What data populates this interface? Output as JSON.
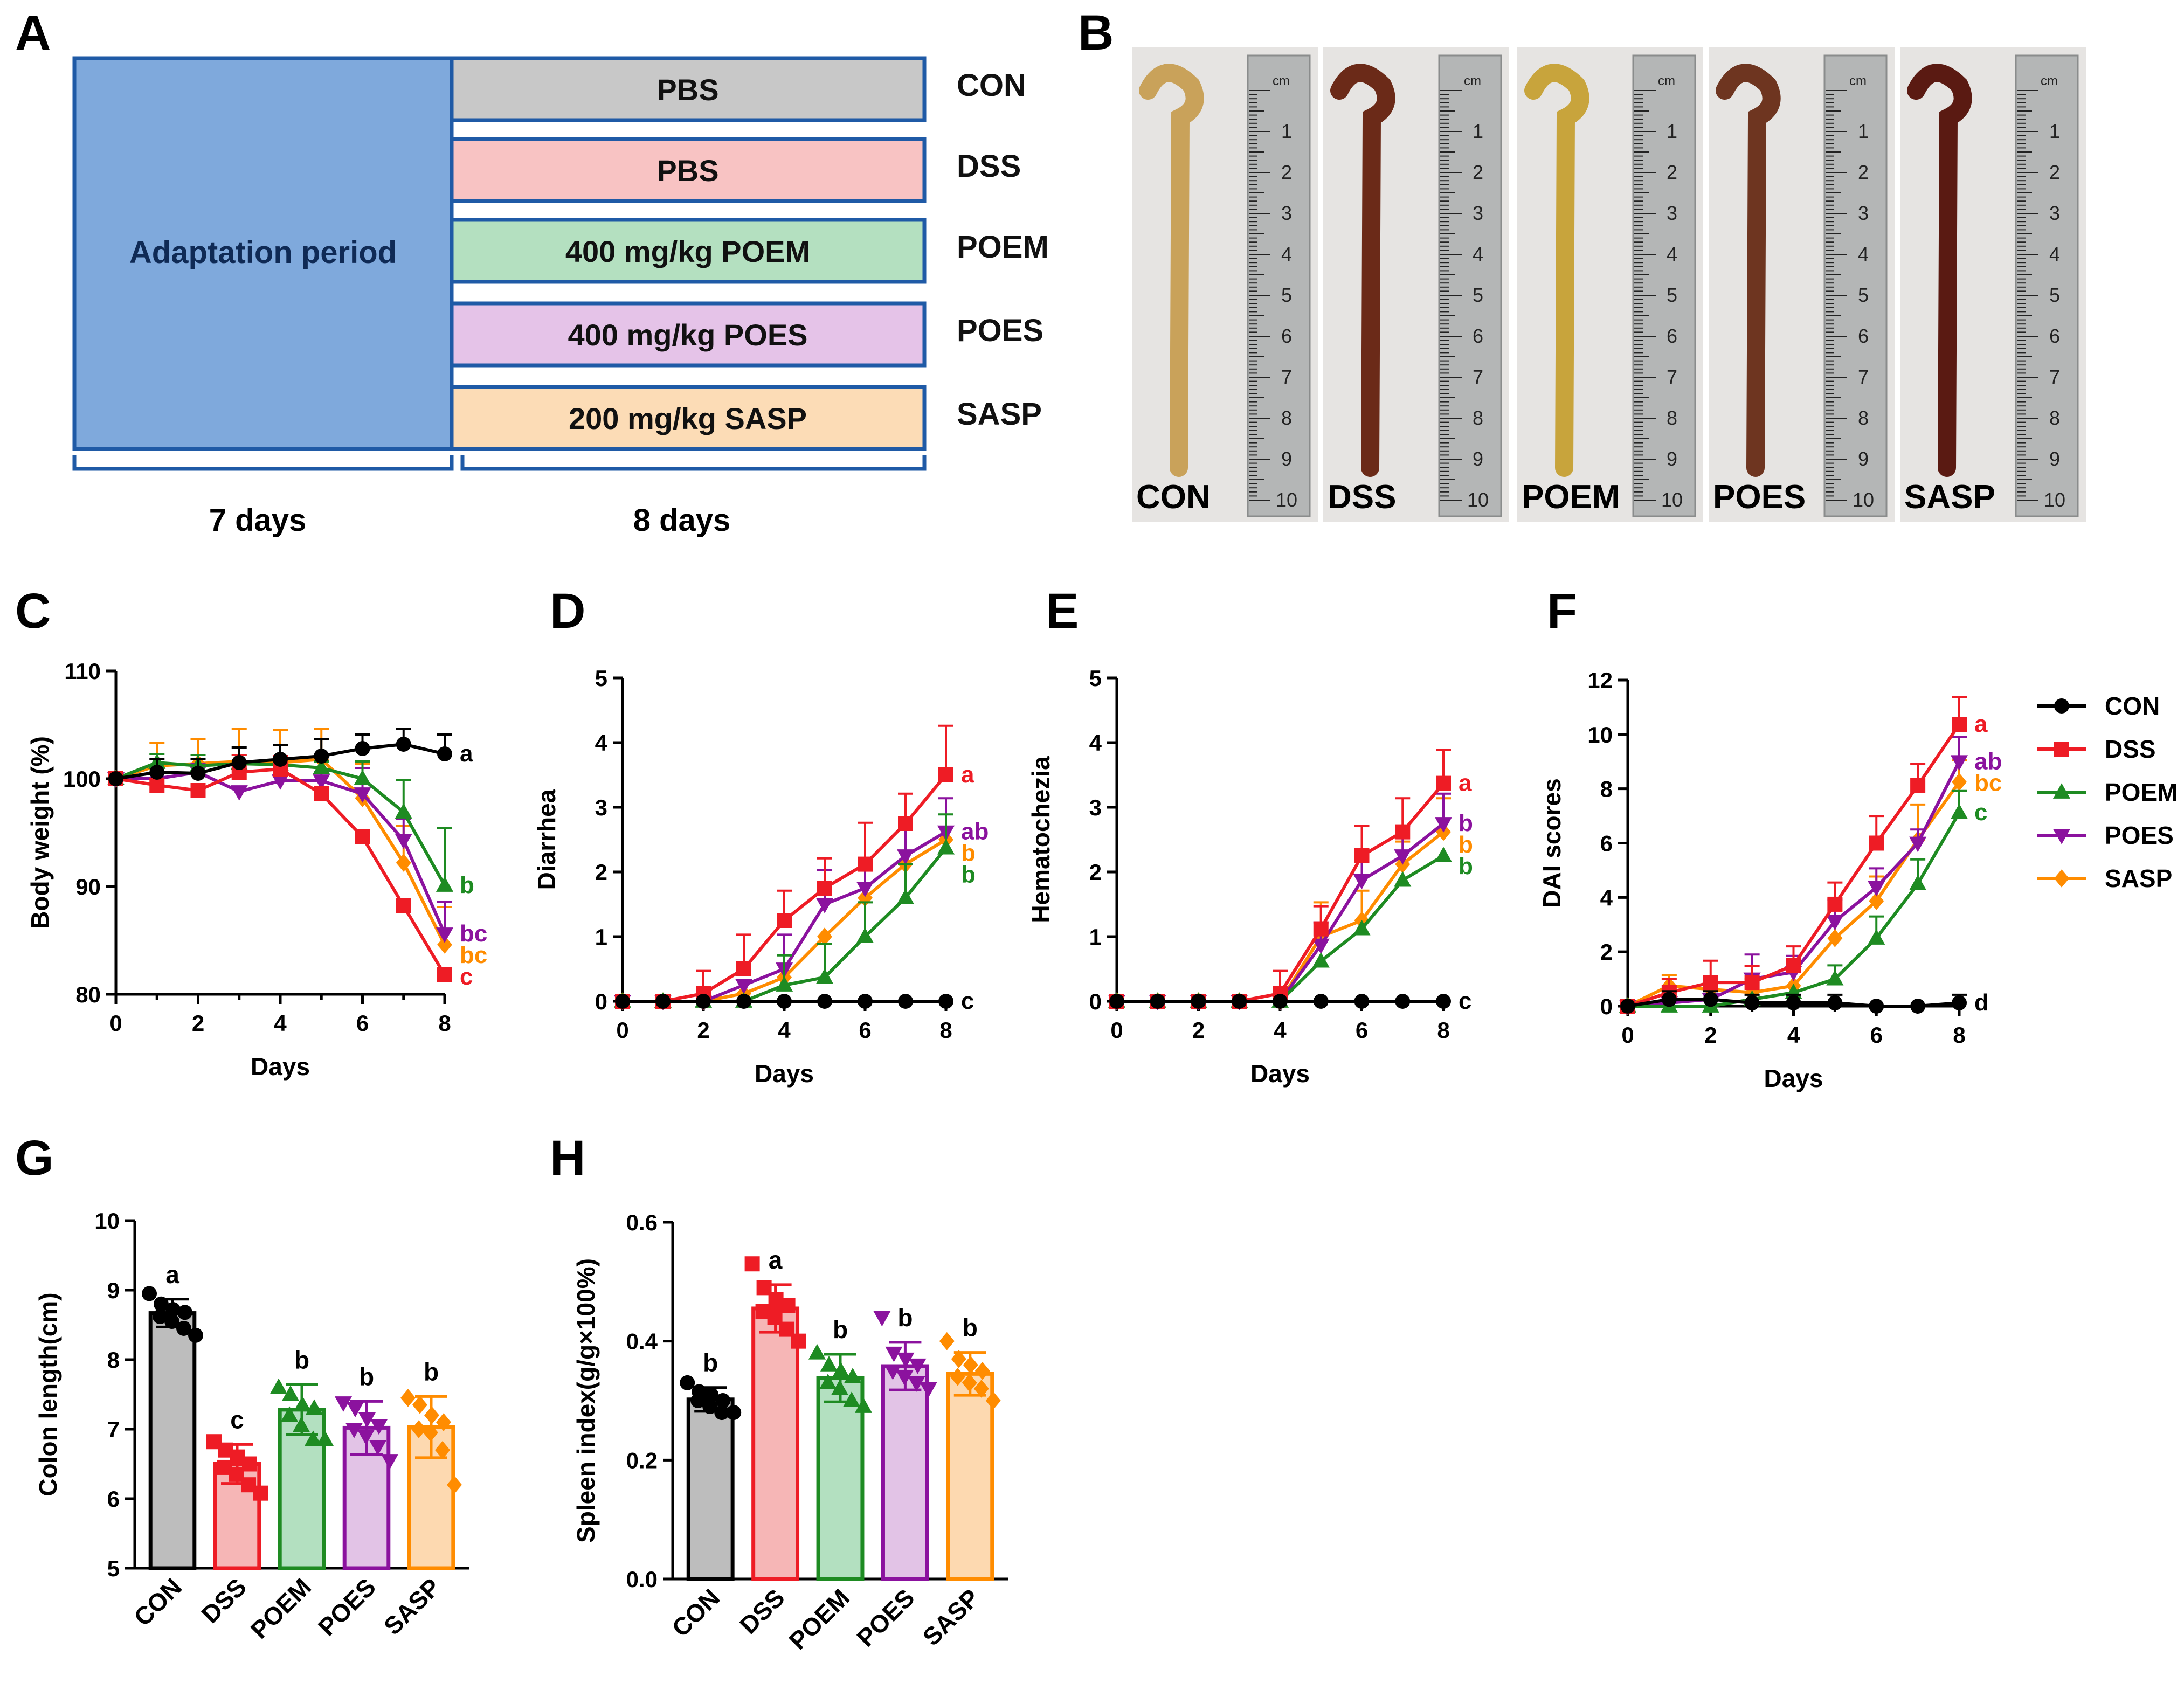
{
  "colors": {
    "CON": "#000000",
    "DSS": "#ee1c25",
    "POEM": "#1e8b22",
    "POES": "#8b129e",
    "SASP": "#ff8c00",
    "adapt_fill": "#7fa9dc",
    "box_stroke": "#1f5aa6"
  },
  "panel_a": {
    "letter": "A",
    "adaptation_label": "Adaptation period",
    "treatments": [
      {
        "label": "PBS",
        "group": "CON",
        "fill": "#c8c8c8"
      },
      {
        "label": "PBS",
        "group": "DSS",
        "fill": "#f8c3c3"
      },
      {
        "label": "400 mg/kg POEM",
        "group": "POEM",
        "fill": "#b4e0c0"
      },
      {
        "label": "400 mg/kg POES",
        "group": "POES",
        "fill": "#e5c3e8"
      },
      {
        "label": "200 mg/kg SASP",
        "group": "SASP",
        "fill": "#fcdcb6"
      }
    ],
    "duration_1": "7 days",
    "duration_2": "8 days"
  },
  "panel_b": {
    "letter": "B",
    "photo_labels": [
      "CON",
      "DSS",
      "POEM",
      "POES",
      "SASP"
    ],
    "ruler_numbers": [
      "1",
      "2",
      "3",
      "4",
      "5",
      "6",
      "7",
      "8",
      "9",
      "10"
    ],
    "ruler_unit": "cm"
  },
  "legend": {
    "items": [
      {
        "name": "CON",
        "marker": "circle"
      },
      {
        "name": "DSS",
        "marker": "square"
      },
      {
        "name": "POEM",
        "marker": "triangle-up"
      },
      {
        "name": "POES",
        "marker": "triangle-down"
      },
      {
        "name": "SASP",
        "marker": "diamond"
      }
    ]
  },
  "chart_data": [
    {
      "panel": "C",
      "type": "line",
      "xlabel": "Days",
      "ylabel": "Body weight (%)",
      "xlim": [
        0,
        8
      ],
      "ylim": [
        80,
        110
      ],
      "xticks": [
        0,
        2,
        4,
        6,
        8
      ],
      "yticks": [
        80,
        90,
        100,
        110
      ],
      "x": [
        0,
        1,
        2,
        3,
        4,
        5,
        6,
        7,
        8
      ],
      "series": [
        {
          "name": "CON",
          "values": [
            100,
            100.6,
            100.5,
            101.5,
            101.8,
            102.1,
            102.8,
            103.2,
            102.3
          ],
          "err": [
            0,
            1.2,
            1.3,
            1.4,
            1.3,
            1.6,
            1.3,
            1.4,
            1.8
          ],
          "letter": "a"
        },
        {
          "name": "DSS",
          "values": [
            100,
            99.4,
            98.9,
            100.6,
            100.9,
            98.6,
            94.6,
            88.2,
            81.8
          ],
          "err": [
            0,
            0,
            0,
            1.6,
            1.2,
            0,
            0,
            0,
            0
          ],
          "letter": "c"
        },
        {
          "name": "POEM",
          "values": [
            100,
            101.5,
            101.2,
            101.4,
            101.3,
            101.0,
            100.0,
            96.9,
            90.1
          ],
          "err": [
            0,
            0.8,
            1.0,
            0.8,
            0.8,
            0.6,
            1.6,
            3.0,
            5.3
          ],
          "letter": "b"
        },
        {
          "name": "POES",
          "values": [
            100,
            100.0,
            100.6,
            98.8,
            99.8,
            99.8,
            98.6,
            94.3,
            85.6
          ],
          "err": [
            0,
            0,
            0.8,
            0,
            0,
            0.8,
            2.4,
            2.0,
            3.0
          ],
          "letter": "bc"
        },
        {
          "name": "SASP",
          "values": [
            100,
            101.2,
            101.4,
            101.6,
            101.5,
            101.8,
            98.2,
            92.2,
            84.6
          ],
          "err": [
            0,
            2.1,
            2.3,
            3.0,
            3.0,
            2.8,
            3.2,
            3.4,
            3.5
          ],
          "letter": "bc"
        }
      ]
    },
    {
      "panel": "D",
      "type": "line",
      "xlabel": "Days",
      "ylabel": "Diarrhea",
      "xlim": [
        0,
        8
      ],
      "ylim": [
        0,
        5
      ],
      "xticks": [
        0,
        2,
        4,
        6,
        8
      ],
      "yticks": [
        0,
        1,
        2,
        3,
        4,
        5
      ],
      "x": [
        0,
        1,
        2,
        3,
        4,
        5,
        6,
        7,
        8
      ],
      "series": [
        {
          "name": "CON",
          "values": [
            0,
            0,
            0,
            0,
            0,
            0,
            0,
            0,
            0
          ],
          "err": [
            0,
            0,
            0,
            0,
            0,
            0,
            0,
            0,
            0
          ],
          "letter": "c"
        },
        {
          "name": "DSS",
          "values": [
            0,
            0,
            0.12,
            0.5,
            1.25,
            1.75,
            2.12,
            2.75,
            3.5
          ],
          "err": [
            0,
            0,
            0.35,
            0.53,
            0.46,
            0.46,
            0.64,
            0.46,
            0.76
          ],
          "letter": "a"
        },
        {
          "name": "POEM",
          "values": [
            0,
            0,
            0,
            0,
            0.25,
            0.37,
            1.0,
            1.6,
            2.37
          ],
          "err": [
            0,
            0,
            0,
            0,
            0.46,
            0.52,
            0.53,
            0.52,
            0.52
          ],
          "letter": "b"
        },
        {
          "name": "POES",
          "values": [
            0,
            0,
            0,
            0.25,
            0.5,
            1.5,
            1.75,
            2.25,
            2.62
          ],
          "err": [
            0,
            0,
            0,
            0,
            0.53,
            0.53,
            0.46,
            0.46,
            0.52
          ],
          "letter": "ab"
        },
        {
          "name": "SASP",
          "values": [
            0,
            0,
            0,
            0.12,
            0.37,
            1.0,
            1.6,
            2.12,
            2.5
          ],
          "err": [
            0,
            0,
            0,
            0,
            0,
            0,
            0,
            0,
            0
          ],
          "letter": "b"
        }
      ]
    },
    {
      "panel": "E",
      "type": "line",
      "xlabel": "Days",
      "ylabel": "Hematochezia",
      "xlim": [
        0,
        8
      ],
      "ylim": [
        0,
        5
      ],
      "xticks": [
        0,
        2,
        4,
        6,
        8
      ],
      "yticks": [
        0,
        1,
        2,
        3,
        4,
        5
      ],
      "x": [
        0,
        1,
        2,
        3,
        4,
        5,
        6,
        7,
        8
      ],
      "series": [
        {
          "name": "CON",
          "values": [
            0,
            0,
            0,
            0,
            0,
            0,
            0,
            0,
            0
          ],
          "err": [
            0,
            0,
            0,
            0,
            0,
            0,
            0,
            0,
            0
          ],
          "letter": "c"
        },
        {
          "name": "DSS",
          "values": [
            0,
            0,
            0,
            0,
            0.12,
            1.12,
            2.25,
            2.62,
            3.37
          ],
          "err": [
            0,
            0,
            0,
            0,
            0.35,
            0.35,
            0.46,
            0.52,
            0.52
          ],
          "letter": "a"
        },
        {
          "name": "POEM",
          "values": [
            0,
            0,
            0,
            0,
            0,
            0.62,
            1.12,
            1.87,
            2.25
          ],
          "err": [
            0,
            0,
            0,
            0,
            0,
            0,
            0,
            0,
            0
          ],
          "letter": "b"
        },
        {
          "name": "POES",
          "values": [
            0,
            0,
            0,
            0,
            0,
            0.87,
            1.87,
            2.25,
            2.75
          ],
          "err": [
            0,
            0,
            0,
            0,
            0,
            0.35,
            0.35,
            0.46,
            0.46
          ],
          "letter": "b"
        },
        {
          "name": "SASP",
          "values": [
            0,
            0,
            0,
            0,
            0,
            1.0,
            1.25,
            2.12,
            2.62
          ],
          "err": [
            0,
            0,
            0,
            0,
            0,
            0.53,
            0.46,
            0.35,
            0.52
          ],
          "letter": "b"
        }
      ]
    },
    {
      "panel": "F",
      "type": "line",
      "xlabel": "Days",
      "ylabel": "DAI scores",
      "xlim": [
        0,
        8
      ],
      "ylim": [
        0,
        12
      ],
      "xticks": [
        0,
        2,
        4,
        6,
        8
      ],
      "yticks": [
        0,
        2,
        4,
        6,
        8,
        10,
        12
      ],
      "x": [
        0,
        1,
        2,
        3,
        4,
        5,
        6,
        7,
        8
      ],
      "series": [
        {
          "name": "CON",
          "values": [
            0,
            0.25,
            0.25,
            0.12,
            0.12,
            0.12,
            0,
            0,
            0.12
          ],
          "err": [
            0,
            0.3,
            0.3,
            0.3,
            0.3,
            0.3,
            0,
            0,
            0.3
          ],
          "letter": "d"
        },
        {
          "name": "DSS",
          "values": [
            0,
            0.5,
            0.87,
            0.87,
            1.5,
            3.75,
            6.0,
            8.12,
            10.37
          ],
          "err": [
            0,
            0.5,
            0.8,
            0.6,
            0.7,
            0.8,
            1.0,
            0.8,
            1.0
          ],
          "letter": "a"
        },
        {
          "name": "POEM",
          "values": [
            0,
            0,
            0,
            0.25,
            0.5,
            1.0,
            2.5,
            4.5,
            7.12
          ],
          "err": [
            0,
            0,
            0,
            0,
            0,
            0.5,
            0.8,
            0.9,
            0.8
          ],
          "letter": "c"
        },
        {
          "name": "POES",
          "values": [
            0,
            0.12,
            0.25,
            1.0,
            1.25,
            3.12,
            4.37,
            6.0,
            9.0
          ],
          "err": [
            0,
            0,
            0,
            0.9,
            0.6,
            0.8,
            0.7,
            0.5,
            0.9
          ],
          "letter": "ab"
        },
        {
          "name": "SASP",
          "values": [
            0,
            0.75,
            0.62,
            0.5,
            0.75,
            2.5,
            3.87,
            6.12,
            8.25
          ],
          "err": [
            0,
            0.4,
            0.4,
            0.5,
            0.5,
            0.8,
            0.9,
            1.3,
            0.8
          ],
          "letter": "bc"
        }
      ]
    },
    {
      "panel": "G",
      "type": "bar",
      "ylabel": "Colon length(cm)",
      "ylim": [
        5,
        10
      ],
      "yticks": [
        5,
        6,
        7,
        8,
        9,
        10
      ],
      "categories": [
        "CON",
        "DSS",
        "POEM",
        "POES",
        "SASP"
      ],
      "values": [
        8.67,
        6.5,
        7.28,
        7.02,
        7.03
      ],
      "err": [
        0.2,
        0.28,
        0.36,
        0.38,
        0.44
      ],
      "letters": [
        "a",
        "c",
        "b",
        "b",
        "b"
      ],
      "points": [
        [
          8.95,
          8.8,
          8.72,
          8.68,
          8.62,
          8.55,
          8.45,
          8.35
        ],
        [
          6.82,
          6.7,
          6.6,
          6.5,
          6.45,
          6.35,
          6.2,
          6.08
        ],
        [
          7.6,
          7.5,
          7.35,
          7.3,
          7.2,
          7.05,
          6.85,
          6.85
        ],
        [
          7.38,
          7.3,
          7.15,
          7.05,
          7.0,
          6.9,
          6.75,
          6.55
        ],
        [
          7.45,
          7.35,
          7.2,
          7.1,
          7.0,
          6.95,
          6.7,
          6.2
        ]
      ]
    },
    {
      "panel": "H",
      "type": "bar",
      "ylabel": "Spleen index(g/g×100%)",
      "ylim": [
        0,
        0.6
      ],
      "yticks": [
        0.0,
        0.2,
        0.4,
        0.6
      ],
      "categories": [
        "CON",
        "DSS",
        "POEM",
        "POES",
        "SASP"
      ],
      "values": [
        0.302,
        0.455,
        0.338,
        0.358,
        0.345
      ],
      "err": [
        0.02,
        0.04,
        0.04,
        0.04,
        0.036
      ],
      "letters": [
        "b",
        "a",
        "b",
        "b",
        "b"
      ],
      "points": [
        [
          0.33,
          0.315,
          0.31,
          0.3,
          0.3,
          0.29,
          0.28,
          0.28
        ],
        [
          0.53,
          0.49,
          0.47,
          0.46,
          0.45,
          0.44,
          0.42,
          0.4
        ],
        [
          0.38,
          0.36,
          0.35,
          0.34,
          0.33,
          0.32,
          0.3,
          0.29
        ],
        [
          0.44,
          0.38,
          0.37,
          0.36,
          0.35,
          0.34,
          0.33,
          0.32
        ],
        [
          0.4,
          0.37,
          0.36,
          0.35,
          0.34,
          0.33,
          0.32,
          0.3
        ]
      ]
    }
  ]
}
